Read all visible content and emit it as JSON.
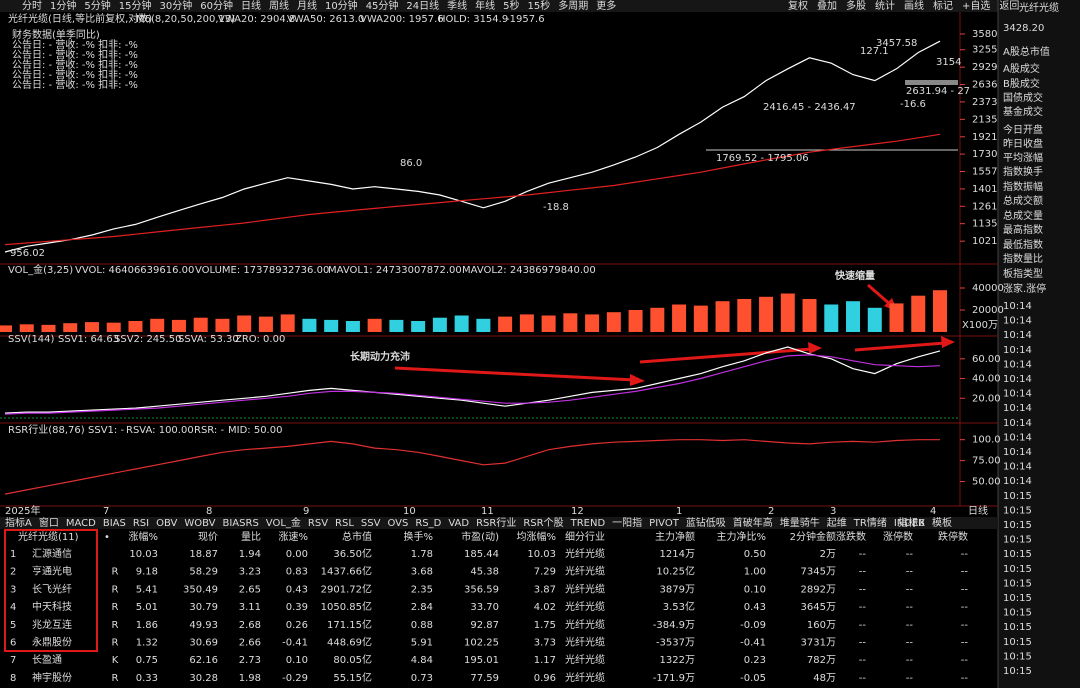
{
  "toolbar": {
    "periods": [
      "分时",
      "1分钟",
      "5分钟",
      "15分钟",
      "30分钟",
      "60分钟",
      "日线",
      "周线",
      "月线",
      "10分钟",
      "45分钟",
      "24日线",
      "季线",
      "年线",
      "5秒",
      "15秒",
      "多周期",
      "更多"
    ],
    "actions": [
      "复权",
      "叠加",
      "多股",
      "统计",
      "画线",
      "标记",
      "+自选",
      "返回"
    ]
  },
  "side": {
    "title": "光纤光缆",
    "price": "3428.20",
    "labels": [
      "A股总市值",
      "A股成交",
      "B股成交",
      "国债成交",
      "基金成交",
      "今日开盘",
      "昨日收盘",
      "平均涨幅",
      "指数换手",
      "指数振幅",
      "总成交额",
      "总成交量",
      "最高指数",
      "最低指数",
      "指数量比",
      "板指类型",
      "涨家.涨停"
    ],
    "times": [
      "10:14",
      "10:14",
      "10:14",
      "10:14",
      "10:14",
      "10:14",
      "10:14",
      "10:14",
      "10:14",
      "10:14",
      "10:14",
      "10:14",
      "10:14",
      "10:15",
      "10:15",
      "10:15",
      "10:15",
      "10:15",
      "10:15",
      "10:15",
      "10:15",
      "10:15",
      "10:15",
      "10:15",
      "10:15",
      "10:15"
    ]
  },
  "finance": [
    "财务数据(单季同比)",
    "公告日: -    营收: -%    扣非: -%",
    "公告日: -    营收: -%    扣非: -%",
    "公告日: -    营收: -%    扣非: -%",
    "公告日: -    营收: -%    扣非: -%",
    "公告日: -    营收: -%    扣非: -%"
  ],
  "chart_data": [
    {
      "type": "line",
      "header": [
        "光纤光缆(日线,等比前复权,对数)",
        "M6(8,20,50,200,13)",
        "VWA20: 2904.8",
        "VWA50: 2613.0",
        "VWA200: 1957.6",
        "HOLD: 3154.9",
        "-1957.6"
      ],
      "log": true,
      "ylim": [
        900,
        3758
      ],
      "yticks": [
        3580,
        3255,
        2929,
        2636,
        2373,
        2135,
        1921,
        1730,
        1557,
        1401,
        1261,
        1135,
        1021
      ],
      "series": [
        {
          "color": "#ffffff",
          "values": [
            956,
            990,
            1010,
            1030,
            1060,
            1100,
            1130,
            1180,
            1230,
            1280,
            1330,
            1400,
            1450,
            1500,
            1470,
            1440,
            1400,
            1420,
            1400,
            1380,
            1350,
            1300,
            1250,
            1300,
            1380,
            1450,
            1500,
            1550,
            1620,
            1700,
            1800,
            1950,
            2100,
            2300,
            2450,
            2700,
            2900,
            3100,
            3000,
            2800,
            2700,
            2900,
            3200,
            3428
          ]
        },
        {
          "color": "#e02020",
          "values": [
            1000,
            1010,
            1020,
            1030,
            1040,
            1050,
            1065,
            1080,
            1095,
            1110,
            1125,
            1140,
            1160,
            1180,
            1200,
            1215,
            1230,
            1245,
            1260,
            1275,
            1290,
            1305,
            1320,
            1335,
            1350,
            1370,
            1390,
            1410,
            1430,
            1460,
            1490,
            1520,
            1550,
            1590,
            1630,
            1670,
            1710,
            1750,
            1780,
            1810,
            1840,
            1870,
            1910,
            1950
          ]
        }
      ],
      "annotations": [
        "3457.58",
        "127.1",
        "3154",
        "2631.94 - 27",
        "2416.45 - 2436.47",
        "-16.6",
        "1769.52 - 1795.06",
        "86.0",
        "-18.8",
        "956.02"
      ]
    },
    {
      "type": "bar",
      "header": [
        "VOL_金(3,25)",
        "VVOL: 46406639616.00",
        "VOLUME: 17378932736.00",
        "MAVOL1: 24733007872.00",
        "MAVOL2: 24386979840.00"
      ],
      "ylim": [
        0,
        50000
      ],
      "yticks": [
        40000,
        20000
      ],
      "unit": "X100万",
      "annotation": "快速缩量",
      "values": [
        6000,
        7000,
        6500,
        8000,
        9000,
        8500,
        10000,
        12000,
        11000,
        13000,
        12000,
        15000,
        14000,
        16000,
        12000,
        11000,
        10000,
        12000,
        11000,
        10000,
        13000,
        15000,
        12000,
        14000,
        16000,
        15000,
        17000,
        16000,
        18000,
        20000,
        22000,
        25000,
        24000,
        28000,
        30000,
        32000,
        35000,
        30000,
        25000,
        28000,
        22000,
        26000,
        33000,
        38000
      ]
    },
    {
      "type": "line",
      "header": [
        "SSV(144)",
        "SSV1: 64.63",
        "SSV2: 245.50",
        "SSVA: 53.30",
        "ZRO: 0.00"
      ],
      "ylim": [
        0,
        74
      ],
      "yticks": [
        {
          "value": 60,
          "label": "60.00"
        },
        {
          "value": 40,
          "label": "40.00"
        },
        {
          "value": 20,
          "label": "20.00"
        }
      ],
      "annotation": "长期动力充沛",
      "series": [
        {
          "color": "#ffffff",
          "values": [
            5,
            6,
            6,
            7,
            8,
            9,
            10,
            12,
            14,
            16,
            18,
            20,
            22,
            25,
            28,
            30,
            28,
            26,
            24,
            22,
            20,
            18,
            15,
            12,
            15,
            18,
            22,
            26,
            28,
            30,
            35,
            40,
            45,
            52,
            58,
            66,
            72,
            65,
            60,
            50,
            45,
            55,
            62,
            68
          ]
        },
        {
          "color": "#c030e0",
          "values": [
            4,
            5,
            5,
            6,
            7,
            8,
            9,
            10,
            12,
            14,
            16,
            18,
            20,
            22,
            25,
            27,
            27,
            26,
            25,
            23,
            21,
            19,
            17,
            15,
            15,
            16,
            18,
            21,
            24,
            27,
            31,
            35,
            40,
            46,
            52,
            58,
            63,
            64,
            62,
            58,
            54,
            53,
            52,
            53
          ]
        }
      ]
    },
    {
      "type": "line",
      "header": [
        "RSR行业(88,76)",
        "SSV1: -",
        "RSVA: 100.00",
        "RSR: -",
        "MID: 50.00"
      ],
      "ylim": [
        22,
        108
      ],
      "yticks": [
        {
          "value": 100,
          "label": "100.0"
        },
        {
          "value": 75,
          "label": "75.00"
        },
        {
          "value": 50,
          "label": "50.00"
        }
      ],
      "series": [
        {
          "color": "#e03030",
          "values": [
            35,
            40,
            45,
            50,
            55,
            60,
            65,
            70,
            75,
            80,
            85,
            88,
            90,
            92,
            95,
            98,
            95,
            90,
            88,
            85,
            80,
            75,
            70,
            72,
            80,
            88,
            92,
            95,
            97,
            98,
            99,
            100,
            100,
            99,
            100,
            98,
            96,
            95,
            97,
            98,
            97,
            99,
            100,
            100
          ]
        }
      ]
    }
  ],
  "xaxis": {
    "labels": [
      "2025年",
      "7",
      "8",
      "9",
      "10",
      "11",
      "12",
      "1",
      "2",
      "3",
      "4"
    ],
    "right": "日线"
  },
  "indicators": {
    "left": [
      "指标A",
      "窗口",
      "MACD",
      "BIAS",
      "RSI",
      "OBV",
      "WOBV",
      "BIASRS",
      "VOL_金",
      "RSV",
      "RSL",
      "SSV",
      "OVS",
      "RS_D",
      "VAD",
      "RSR行业",
      "RSR个股",
      "TREND",
      "一阳指",
      "PIVOT",
      "蓝钻低吸",
      "首破年高",
      "堆量骑牛",
      "起维",
      "TR情绪",
      "INDEX"
    ],
    "right": [
      "指标B",
      "模板"
    ]
  },
  "table": {
    "header": [
      "光纤光缆(11)",
      "•",
      "涨幅%",
      "现价",
      "量比",
      "涨速%",
      "总市值",
      "换手%",
      "市盈(动)",
      "均涨幅%",
      "细分行业",
      "主力净额",
      "主力净比%",
      "2分钟金额",
      "涨跌数",
      "涨停数",
      "跌停数"
    ],
    "rows": [
      [
        "1",
        "汇源通信",
        "",
        "10.03",
        "18.87",
        "1.94",
        "0.00",
        "36.50亿",
        "1.78",
        "185.44",
        "10.03",
        "光纤光缆",
        "1214万",
        "0.50",
        "2万",
        "--",
        "--",
        "--"
      ],
      [
        "2",
        "亨通光电",
        "R",
        "9.18",
        "58.29",
        "3.23",
        "0.83",
        "1437.66亿",
        "3.68",
        "45.38",
        "7.29",
        "光纤光缆",
        "10.25亿",
        "1.00",
        "7345万",
        "--",
        "--",
        "--"
      ],
      [
        "3",
        "长飞光纤",
        "R",
        "5.41",
        "350.49",
        "2.65",
        "0.43",
        "2901.72亿",
        "2.35",
        "356.59",
        "3.87",
        "光纤光缆",
        "3879万",
        "0.10",
        "2892万",
        "--",
        "--",
        "--"
      ],
      [
        "4",
        "中天科技",
        "R",
        "5.01",
        "30.79",
        "3.11",
        "0.39",
        "1050.85亿",
        "2.84",
        "33.70",
        "4.02",
        "光纤光缆",
        "3.53亿",
        "0.43",
        "3645万",
        "--",
        "--",
        "--"
      ],
      [
        "5",
        "兆龙互连",
        "R",
        "1.86",
        "49.93",
        "2.68",
        "0.26",
        "171.15亿",
        "0.88",
        "92.87",
        "1.75",
        "光纤光缆",
        "-384.9万",
        "-0.09",
        "160万",
        "--",
        "--",
        "--"
      ],
      [
        "6",
        "永鼎股份",
        "R",
        "1.32",
        "30.69",
        "2.66",
        "-0.41",
        "448.69亿",
        "5.91",
        "102.25",
        "3.73",
        "光纤光缆",
        "-3537万",
        "-0.41",
        "3731万",
        "--",
        "--",
        "--"
      ],
      [
        "7",
        "长盈通",
        "K",
        "0.75",
        "62.16",
        "2.73",
        "0.10",
        "80.05亿",
        "4.84",
        "195.01",
        "1.17",
        "光纤光缆",
        "1322万",
        "0.23",
        "782万",
        "--",
        "--",
        "--"
      ],
      [
        "8",
        "神宇股份",
        "R",
        "0.33",
        "30.28",
        "1.98",
        "-0.29",
        "55.15亿",
        "0.73",
        "77.59",
        "0.96",
        "光纤光缆",
        "-171.9万",
        "-0.05",
        "48万",
        "--",
        "--",
        "--"
      ]
    ]
  }
}
